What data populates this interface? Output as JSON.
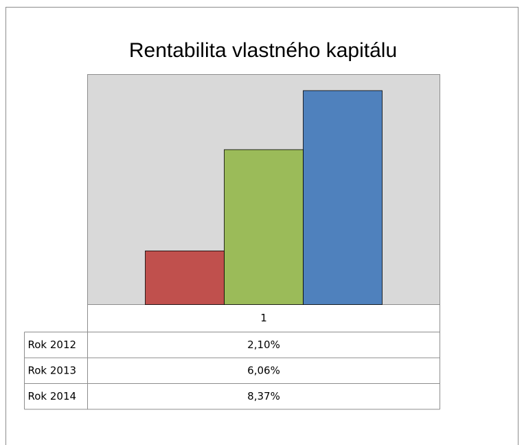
{
  "chart_data": {
    "type": "bar",
    "title": "Rentabilita vlastného kapitálu",
    "categories": [
      "1"
    ],
    "series": [
      {
        "name": "Rok 2012",
        "color": "#c0504d",
        "values": [
          2.1
        ],
        "value_labels": [
          "2,10%"
        ]
      },
      {
        "name": "Rok 2013",
        "color": "#9bbb59",
        "values": [
          6.06
        ],
        "value_labels": [
          "6,06%"
        ]
      },
      {
        "name": "Rok 2014",
        "color": "#4f81bd",
        "values": [
          8.37
        ],
        "value_labels": [
          "8,37%"
        ]
      }
    ],
    "ylim": [
      0,
      9
    ]
  }
}
